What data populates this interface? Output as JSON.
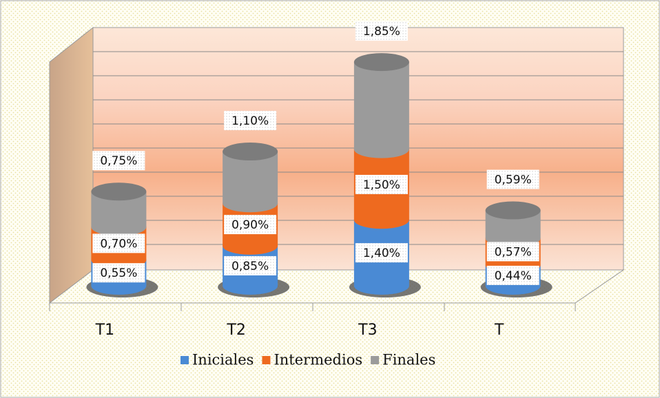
{
  "chart_data": {
    "type": "bar",
    "stacked": true,
    "categories": [
      "T1",
      "T2",
      "T3",
      "T"
    ],
    "series": [
      {
        "name": "Iniciales",
        "color": "#4a8ad4",
        "values": [
          0.55,
          0.85,
          1.4,
          0.44
        ],
        "value_labels": [
          "0,55%",
          "0,85%",
          "1,40%",
          "0,44%"
        ]
      },
      {
        "name": "Intermedios",
        "color": "#ee6a1f",
        "values": [
          0.7,
          0.9,
          1.5,
          0.57
        ],
        "value_labels": [
          "0,70%",
          "0,90%",
          "1,50%",
          "0,57%"
        ]
      },
      {
        "name": "Finales",
        "color": "#9b9b9b",
        "values": [
          0.75,
          1.1,
          1.85,
          0.59
        ],
        "value_labels": [
          "0,75%",
          "1,10%",
          "1,85%",
          "0,59%"
        ]
      }
    ],
    "ylim": [
      0,
      5
    ],
    "legend": "bottom"
  }
}
